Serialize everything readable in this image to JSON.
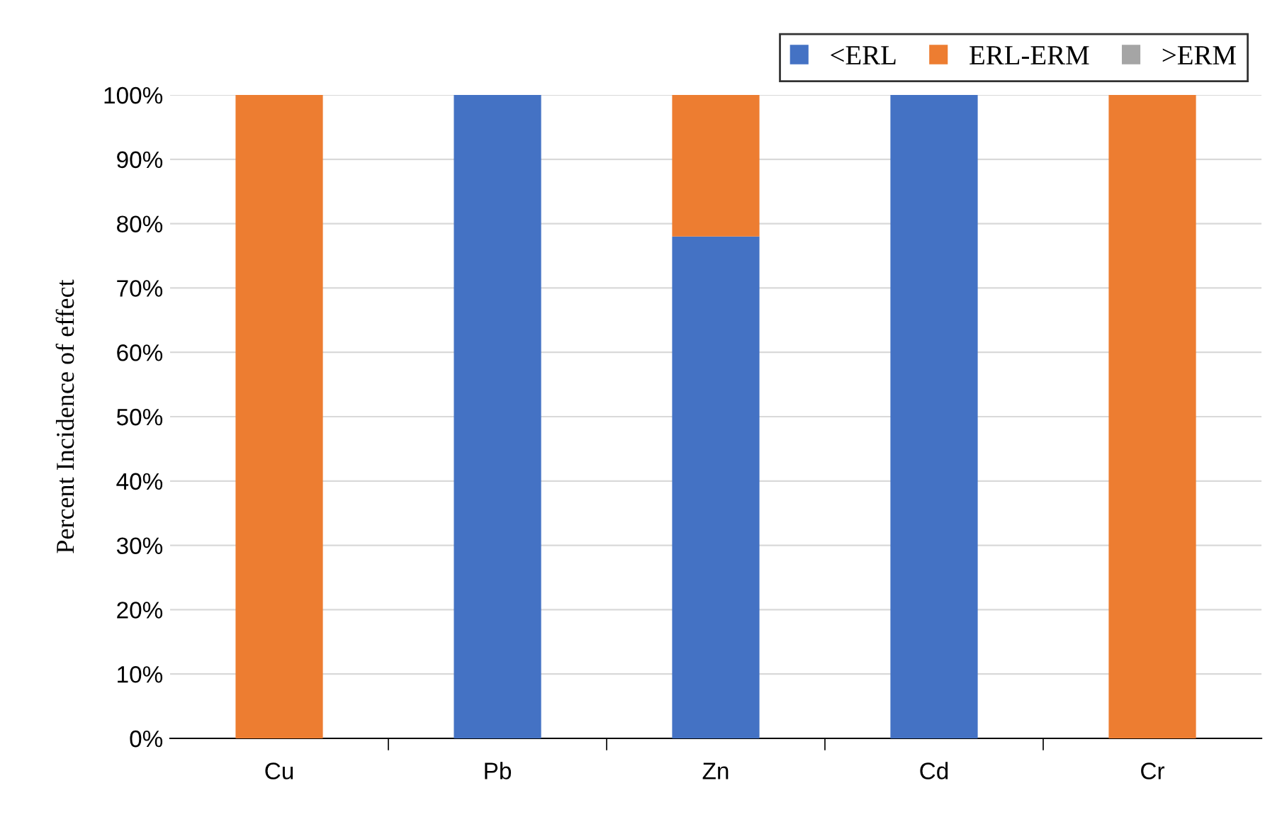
{
  "chart_data": {
    "type": "bar",
    "stacked": true,
    "ylabel": "Percent Incidence of effect",
    "categories": [
      "Cu",
      "Pb",
      "Zn",
      "Cd",
      "Cr"
    ],
    "series": [
      {
        "name": "<ERL",
        "color": "#4472c4",
        "values": [
          0,
          100,
          78,
          100,
          0
        ]
      },
      {
        "name": "ERL-ERM",
        "color": "#ed7d31",
        "values": [
          100,
          0,
          22,
          0,
          100
        ]
      },
      {
        "name": ">ERM",
        "color": "#a5a5a5",
        "values": [
          0,
          0,
          0,
          0,
          0
        ]
      }
    ],
    "ylim": [
      0,
      100
    ],
    "yticks": [
      {
        "value": 0,
        "label": "0%"
      },
      {
        "value": 10,
        "label": "10%"
      },
      {
        "value": 20,
        "label": "20%"
      },
      {
        "value": 30,
        "label": "30%"
      },
      {
        "value": 40,
        "label": "40%"
      },
      {
        "value": 50,
        "label": "50%"
      },
      {
        "value": 60,
        "label": "60%"
      },
      {
        "value": 70,
        "label": "70%"
      },
      {
        "value": 80,
        "label": "80%"
      },
      {
        "value": 90,
        "label": "90%"
      },
      {
        "value": 100,
        "label": "100%"
      }
    ],
    "grid": "y",
    "legend": "top right"
  }
}
